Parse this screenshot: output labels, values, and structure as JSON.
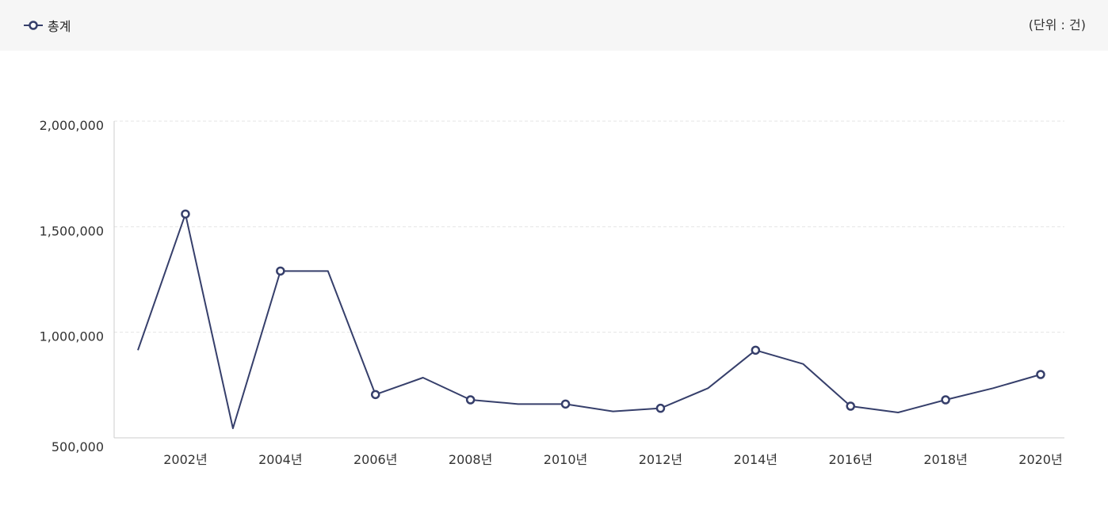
{
  "legend": {
    "series_label": "총계",
    "unit": "(단위 : 건)"
  },
  "colors": {
    "series": "#363f6b",
    "grid": "#e4e4e4",
    "axis": "#cccccc",
    "legend_bg": "#f6f6f6"
  },
  "chart_data": {
    "type": "line",
    "x": [
      2001,
      2002,
      2003,
      2004,
      2005,
      2006,
      2007,
      2008,
      2009,
      2010,
      2011,
      2012,
      2013,
      2014,
      2015,
      2016,
      2017,
      2018,
      2019,
      2020
    ],
    "x_tick_labels": [
      "2002년",
      "2004년",
      "2006년",
      "2008년",
      "2010년",
      "2012년",
      "2014년",
      "2016년",
      "2018년",
      "2020년"
    ],
    "x_tick_values": [
      2002,
      2004,
      2006,
      2008,
      2010,
      2012,
      2014,
      2016,
      2018,
      2020
    ],
    "series": [
      {
        "name": "총계",
        "values": [
          915000,
          1560000,
          545000,
          1290000,
          1290000,
          705000,
          785000,
          680000,
          660000,
          660000,
          625000,
          640000,
          735000,
          915000,
          850000,
          650000,
          620000,
          680000,
          735000,
          800000
        ]
      }
    ],
    "y_tick_labels": [
      "500,000",
      "1,000,000",
      "1,500,000",
      "2,000,000"
    ],
    "y_tick_values": [
      500000,
      1000000,
      1500000,
      2000000
    ],
    "ylim": [
      500000,
      2000000
    ],
    "marker_years": [
      2002,
      2004,
      2006,
      2008,
      2010,
      2012,
      2014,
      2016,
      2018,
      2020
    ],
    "grid": true,
    "legend_position": "top-left"
  }
}
